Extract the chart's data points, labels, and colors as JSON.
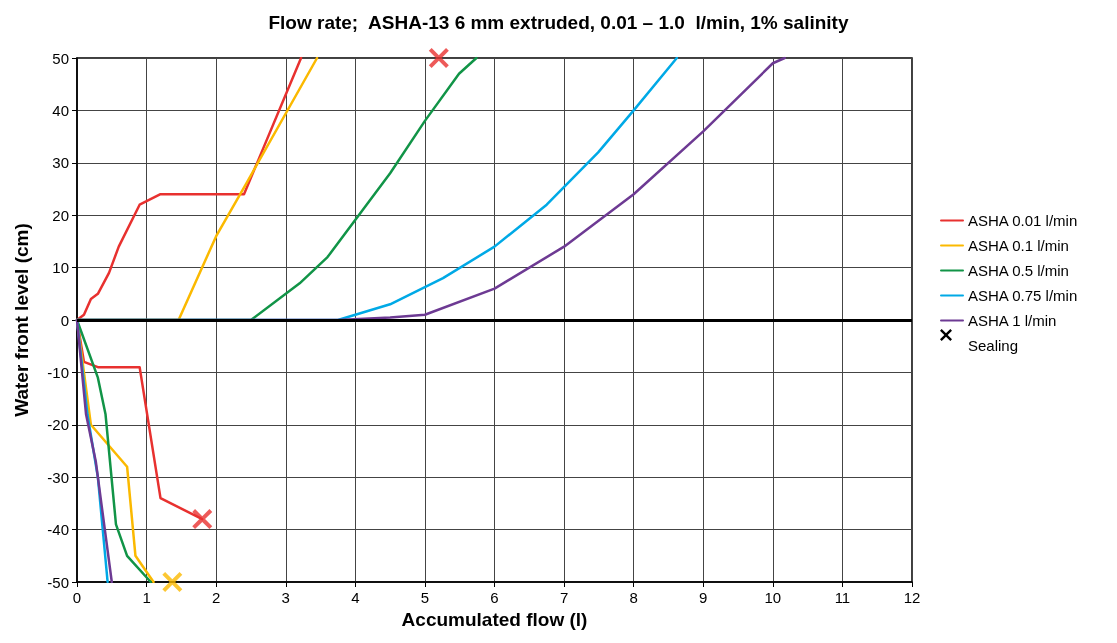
{
  "chart_data": {
    "type": "line",
    "title": "Flow rate;  ASHA-13 6 mm extruded, 0.01 – 1.0  l/min, 1% salinity",
    "xlabel": "Accumulated flow (l)",
    "ylabel": "Water front level (cm)",
    "xlim": [
      0,
      12
    ],
    "xticks": [
      0,
      1,
      2,
      3,
      4,
      5,
      6,
      7,
      8,
      9,
      10,
      11,
      12
    ],
    "ylim": [
      -50,
      50
    ],
    "yticks": [
      -50,
      -40,
      -30,
      -20,
      -10,
      0,
      10,
      20,
      30,
      40,
      50
    ],
    "grid": true,
    "legend": "right",
    "marker": "none",
    "line_style": "solid",
    "ref_lines": [
      {
        "axis": "y",
        "value": 0,
        "color": "#000000"
      }
    ],
    "series": [
      {
        "name": "ASHA 0.01 l/min",
        "color": "#e8312f",
        "x": [
          1.8,
          1.2,
          0.9,
          0.3,
          0.1,
          0,
          0.1,
          0.2,
          0.3,
          0.46,
          0.6,
          0.9,
          1.2,
          2.4,
          3.22
        ],
        "values": [
          -38,
          -34,
          -9,
          -9,
          -8,
          0,
          1,
          4,
          5,
          9,
          14,
          22,
          24,
          24,
          50
        ]
      },
      {
        "name": "ASHA 0.1 l/min",
        "color": "#fbb900",
        "x": [
          1.1,
          0.84,
          0.72,
          0.2,
          0,
          1.46,
          2.0,
          2.43,
          3.45
        ],
        "values": [
          -50,
          -45,
          -28,
          -20,
          0,
          0,
          16,
          26,
          50
        ]
      },
      {
        "name": "ASHA 0.5 l/min",
        "color": "#119447",
        "x": [
          1.06,
          0.72,
          0.56,
          0.41,
          0.3,
          0,
          2.5,
          3.2,
          3.6,
          4.5,
          5.0,
          5.49,
          5.74
        ],
        "values": [
          -50,
          -45,
          -39,
          -18,
          -11,
          0,
          0,
          7,
          12,
          28,
          38,
          47,
          50
        ]
      },
      {
        "name": "ASHA 0.75 l/min",
        "color": "#00a9e6",
        "x": [
          0.44,
          0.3,
          0.15,
          0,
          3.75,
          4.5,
          5.26,
          6.0,
          6.75,
          7.49,
          8.0,
          8.62
        ],
        "values": [
          -50,
          -30,
          -18,
          0,
          0,
          3,
          8,
          14,
          22,
          32,
          40,
          50
        ]
      },
      {
        "name": "ASHA 1 l/min",
        "color": "#6d3a93",
        "x": [
          0.5,
          0.27,
          0.13,
          0,
          3.75,
          4.5,
          5.0,
          6.0,
          7.0,
          8.0,
          9.0,
          10.0,
          10.17
        ],
        "values": [
          -50,
          -27,
          -18,
          0,
          0,
          0.5,
          1,
          6,
          14,
          24,
          36,
          49,
          50
        ]
      },
      {
        "name": "Sealing",
        "type": "scatter",
        "marker": "cross",
        "color": "#000000",
        "colors": [
          "#e8312f",
          "#e8312f",
          "#fbb900"
        ],
        "x": [
          5.2,
          1.8,
          1.37
        ],
        "values": [
          50,
          -38,
          -50
        ]
      }
    ]
  }
}
